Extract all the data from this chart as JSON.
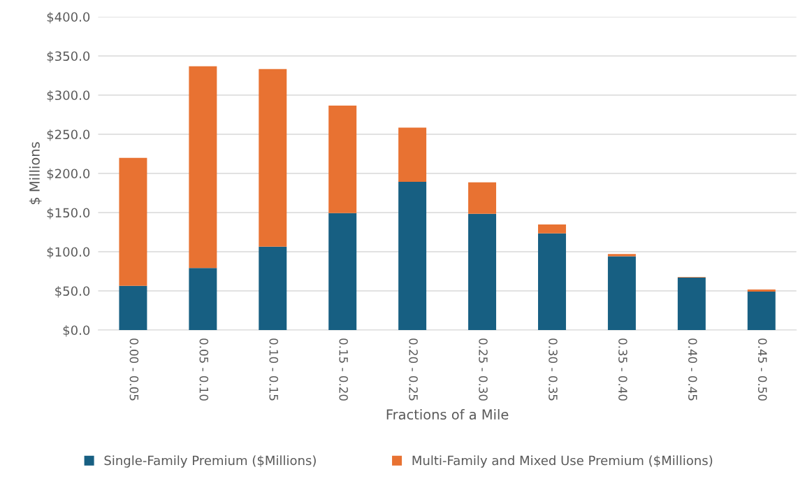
{
  "chart_data": {
    "type": "bar",
    "stacked": true,
    "xlabel": "Fractions of a Mile",
    "ylabel": "$ Millions",
    "categories": [
      "0.00 - 0.05",
      "0.05 - 0.10",
      "0.10 - 0.15",
      "0.15 - 0.20",
      "0.20 - 0.25",
      "0.25 - 0.30",
      "0.30 - 0.35",
      "0.35 - 0.40",
      "0.40 - 0.45",
      "0.45 - 0.50"
    ],
    "series": [
      {
        "name": "Single-Family Premium ($Millions)",
        "color": "#175f82",
        "values": [
          56.5,
          79.3,
          106.4,
          149.4,
          189.2,
          148.5,
          123.3,
          94.1,
          66.9,
          49.0
        ]
      },
      {
        "name": "Multi-Family and Mixed Use Premium ($Millions)",
        "color": "#e87232",
        "values": [
          163.3,
          257.6,
          226.8,
          137.2,
          69.3,
          40.1,
          11.6,
          3.0,
          0.7,
          2.7
        ]
      }
    ],
    "ylim": [
      0,
      400
    ],
    "yticks": [
      {
        "value": 0,
        "label": "$0.0"
      },
      {
        "value": 50,
        "label": "$50.0"
      },
      {
        "value": 100,
        "label": "$100.0"
      },
      {
        "value": 150,
        "label": "$150.0"
      },
      {
        "value": 200,
        "label": "$200.0"
      },
      {
        "value": 250,
        "label": "$250.0"
      },
      {
        "value": 300,
        "label": "$300.0"
      },
      {
        "value": 350,
        "label": "$350.0"
      },
      {
        "value": 400,
        "label": "$400.0"
      }
    ],
    "grid": "y",
    "legend": "bottom"
  }
}
